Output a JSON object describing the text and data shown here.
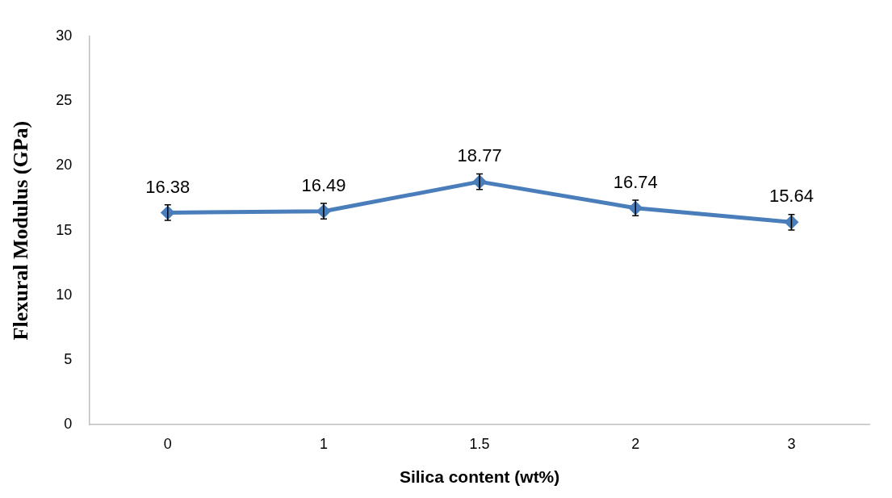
{
  "chart_data": {
    "type": "line",
    "xlabel": "Silica content (wt%)",
    "ylabel": "Flexural Modulus (GPa)",
    "categories": [
      "0",
      "1",
      "1.5",
      "2",
      "3"
    ],
    "series": [
      {
        "color": "#4a7ebb",
        "values": [
          16.38,
          16.49,
          18.77,
          16.74,
          15.64
        ],
        "errors": [
          0.6,
          0.6,
          0.6,
          0.6,
          0.6
        ]
      }
    ],
    "ylim": [
      0,
      30
    ],
    "yticks": [
      0,
      5,
      10,
      15,
      20,
      25,
      30
    ],
    "grid": false,
    "legend": false,
    "marker": "diamond",
    "line_style": "solid",
    "data_labels": true
  }
}
